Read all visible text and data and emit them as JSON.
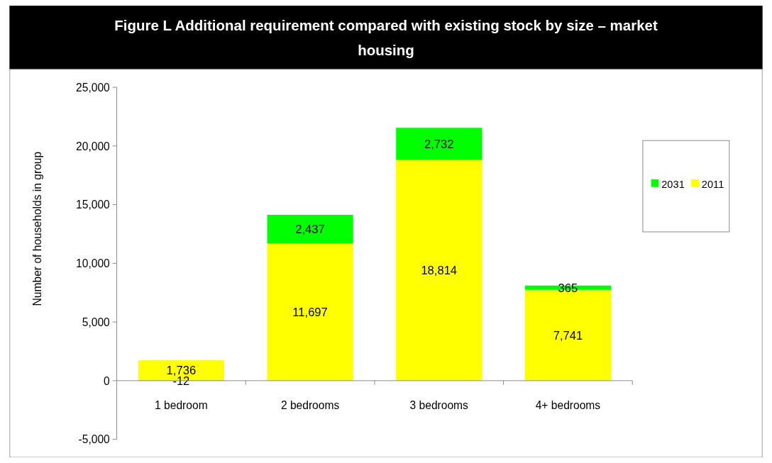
{
  "chart_data": {
    "type": "bar",
    "title": "Figure L Additional requirement compared with existing stock by size – market housing",
    "ylabel": "Number of households in group",
    "categories": [
      "1 bedroom",
      "2 bedrooms",
      "3 bedrooms",
      "4+ bedrooms"
    ],
    "stacked": true,
    "legend": "right",
    "ylim": [
      -5000,
      25000
    ],
    "yticks": [
      {
        "value": -5000,
        "label": "-5,000"
      },
      0,
      {
        "value": 5000,
        "label": "5,000"
      },
      {
        "value": 10000,
        "label": "10,000"
      },
      {
        "value": 15000,
        "label": "15,000"
      },
      {
        "value": 20000,
        "label": "20,000"
      },
      {
        "value": 25000,
        "label": "25,000"
      }
    ],
    "series": [
      {
        "name": "2011",
        "color": "#ffff00",
        "values": [
          1736,
          11697,
          18814,
          7741
        ],
        "value_labels": [
          "1,736",
          "11,697",
          "18,814",
          "7,741"
        ]
      },
      {
        "name": "2031",
        "color": "#00ff00",
        "values": [
          -12,
          2437,
          2732,
          365
        ],
        "value_labels": [
          "-12",
          "2,437",
          "2,732",
          "365"
        ]
      }
    ]
  }
}
